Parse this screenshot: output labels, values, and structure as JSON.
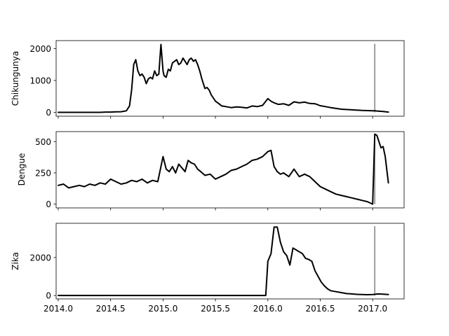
{
  "chart_data": [
    {
      "type": "line",
      "ylabel": "Chikungunya",
      "xlim": [
        2013.98,
        2017.3
      ],
      "ylim": [
        -120,
        2250
      ],
      "yticks": [
        0,
        1000,
        2000
      ],
      "ytick_labels": [
        "0",
        "1000",
        "2000"
      ],
      "xticks": [
        2014.0,
        2014.5,
        2015.0,
        2015.5,
        2016.0,
        2016.5,
        2017.0
      ],
      "xtick_labels": [],
      "marker_x": 2017.02,
      "marker_range": [
        0,
        2150
      ],
      "series": [
        {
          "name": "Chikungunya",
          "x": [
            2014.0,
            2014.1,
            2014.2,
            2014.3,
            2014.4,
            2014.45,
            2014.5,
            2014.55,
            2014.6,
            2014.65,
            2014.68,
            2014.7,
            2014.72,
            2014.74,
            2014.76,
            2014.78,
            2014.8,
            2014.82,
            2014.84,
            2014.86,
            2014.88,
            2014.9,
            2014.92,
            2014.94,
            2014.96,
            2014.98,
            2015.0,
            2015.01,
            2015.03,
            2015.05,
            2015.07,
            2015.09,
            2015.11,
            2015.13,
            2015.15,
            2015.17,
            2015.19,
            2015.21,
            2015.23,
            2015.25,
            2015.27,
            2015.29,
            2015.31,
            2015.33,
            2015.35,
            2015.37,
            2015.4,
            2015.42,
            2015.44,
            2015.46,
            2015.48,
            2015.5,
            2015.53,
            2015.56,
            2015.6,
            2015.65,
            2015.7,
            2015.75,
            2015.8,
            2015.85,
            2015.9,
            2015.95,
            2016.0,
            2016.03,
            2016.06,
            2016.1,
            2016.15,
            2016.2,
            2016.25,
            2016.3,
            2016.35,
            2016.4,
            2016.45,
            2016.5,
            2016.55,
            2016.6,
            2016.7,
            2016.8,
            2016.9,
            2017.0,
            2017.02,
            2017.05,
            2017.1,
            2017.15
          ],
          "y": [
            0,
            0,
            0,
            0,
            0,
            10,
            10,
            15,
            20,
            50,
            200,
            700,
            1500,
            1650,
            1300,
            1150,
            1200,
            1100,
            900,
            1050,
            1100,
            1050,
            1300,
            1150,
            1200,
            2130,
            1300,
            1150,
            1100,
            1350,
            1300,
            1550,
            1600,
            1650,
            1500,
            1550,
            1700,
            1600,
            1500,
            1650,
            1700,
            1600,
            1650,
            1500,
            1300,
            1050,
            750,
            780,
            700,
            550,
            450,
            350,
            280,
            200,
            180,
            150,
            170,
            160,
            140,
            200,
            180,
            220,
            430,
            350,
            300,
            250,
            270,
            220,
            330,
            300,
            320,
            280,
            270,
            210,
            180,
            150,
            100,
            80,
            60,
            50,
            50,
            40,
            30,
            10
          ]
        }
      ]
    },
    {
      "type": "line",
      "ylabel": "Dengue",
      "xlim": [
        2013.98,
        2017.3
      ],
      "ylim": [
        -30,
        580
      ],
      "yticks": [
        0,
        250,
        500
      ],
      "ytick_labels": [
        "0",
        "250",
        "500"
      ],
      "xticks": [
        2014.0,
        2014.5,
        2015.0,
        2015.5,
        2016.0,
        2016.5,
        2017.0
      ],
      "xtick_labels": [],
      "marker_x": 2017.02,
      "marker_range": [
        0,
        560
      ],
      "series": [
        {
          "name": "Dengue",
          "x": [
            2014.0,
            2014.05,
            2014.1,
            2014.15,
            2014.2,
            2014.25,
            2014.3,
            2014.35,
            2014.4,
            2014.45,
            2014.5,
            2014.55,
            2014.6,
            2014.65,
            2014.7,
            2014.75,
            2014.8,
            2014.85,
            2014.9,
            2014.95,
            2015.0,
            2015.03,
            2015.06,
            2015.09,
            2015.12,
            2015.15,
            2015.18,
            2015.21,
            2015.24,
            2015.27,
            2015.3,
            2015.33,
            2015.36,
            2015.4,
            2015.45,
            2015.5,
            2015.55,
            2015.6,
            2015.65,
            2015.7,
            2015.75,
            2015.8,
            2015.85,
            2015.9,
            2015.95,
            2016.0,
            2016.03,
            2016.06,
            2016.09,
            2016.12,
            2016.15,
            2016.2,
            2016.25,
            2016.3,
            2016.35,
            2016.4,
            2016.45,
            2016.5,
            2016.55,
            2016.6,
            2016.65,
            2016.7,
            2016.75,
            2016.8,
            2016.85,
            2016.9,
            2016.95,
            2017.0,
            2017.02,
            2017.04,
            2017.06,
            2017.08,
            2017.1,
            2017.12,
            2017.15
          ],
          "y": [
            150,
            160,
            130,
            140,
            150,
            140,
            160,
            150,
            170,
            160,
            200,
            180,
            160,
            170,
            190,
            180,
            200,
            170,
            190,
            180,
            380,
            280,
            260,
            300,
            250,
            320,
            290,
            260,
            350,
            330,
            320,
            280,
            260,
            230,
            240,
            200,
            220,
            240,
            270,
            280,
            300,
            320,
            350,
            360,
            380,
            420,
            430,
            300,
            260,
            240,
            250,
            220,
            280,
            220,
            240,
            220,
            180,
            140,
            120,
            100,
            80,
            70,
            60,
            50,
            40,
            30,
            20,
            0,
            560,
            550,
            500,
            450,
            460,
            380,
            170
          ]
        }
      ]
    },
    {
      "type": "line",
      "ylabel": "Zika",
      "xlim": [
        2013.98,
        2017.3
      ],
      "ylim": [
        -180,
        3800
      ],
      "yticks": [
        0,
        2000
      ],
      "ytick_labels": [
        "0",
        "2000"
      ],
      "xticks": [
        2014.0,
        2014.5,
        2015.0,
        2015.5,
        2016.0,
        2016.5,
        2017.0
      ],
      "xtick_labels": [
        "2014.0",
        "2014.5",
        "2015.0",
        "2015.5",
        "2016.0",
        "2016.5",
        "2017.0"
      ],
      "marker_x": 2017.02,
      "marker_range": [
        0,
        3650
      ],
      "series": [
        {
          "name": "Zika",
          "x": [
            2014.0,
            2014.5,
            2015.0,
            2015.5,
            2015.98,
            2016.0,
            2016.03,
            2016.06,
            2016.09,
            2016.12,
            2016.15,
            2016.18,
            2016.21,
            2016.24,
            2016.27,
            2016.3,
            2016.33,
            2016.36,
            2016.39,
            2016.42,
            2016.45,
            2016.48,
            2016.51,
            2016.54,
            2016.57,
            2016.6,
            2016.65,
            2016.7,
            2016.75,
            2016.8,
            2016.85,
            2016.9,
            2016.95,
            2017.0,
            2017.02,
            2017.05,
            2017.1,
            2017.15
          ],
          "y": [
            0,
            0,
            0,
            0,
            0,
            1800,
            2200,
            3600,
            3600,
            2800,
            2300,
            2100,
            1600,
            2500,
            2400,
            2300,
            2200,
            1950,
            1900,
            1800,
            1300,
            1000,
            700,
            500,
            350,
            250,
            200,
            150,
            100,
            80,
            60,
            50,
            40,
            50,
            60,
            80,
            70,
            50
          ]
        }
      ]
    }
  ]
}
